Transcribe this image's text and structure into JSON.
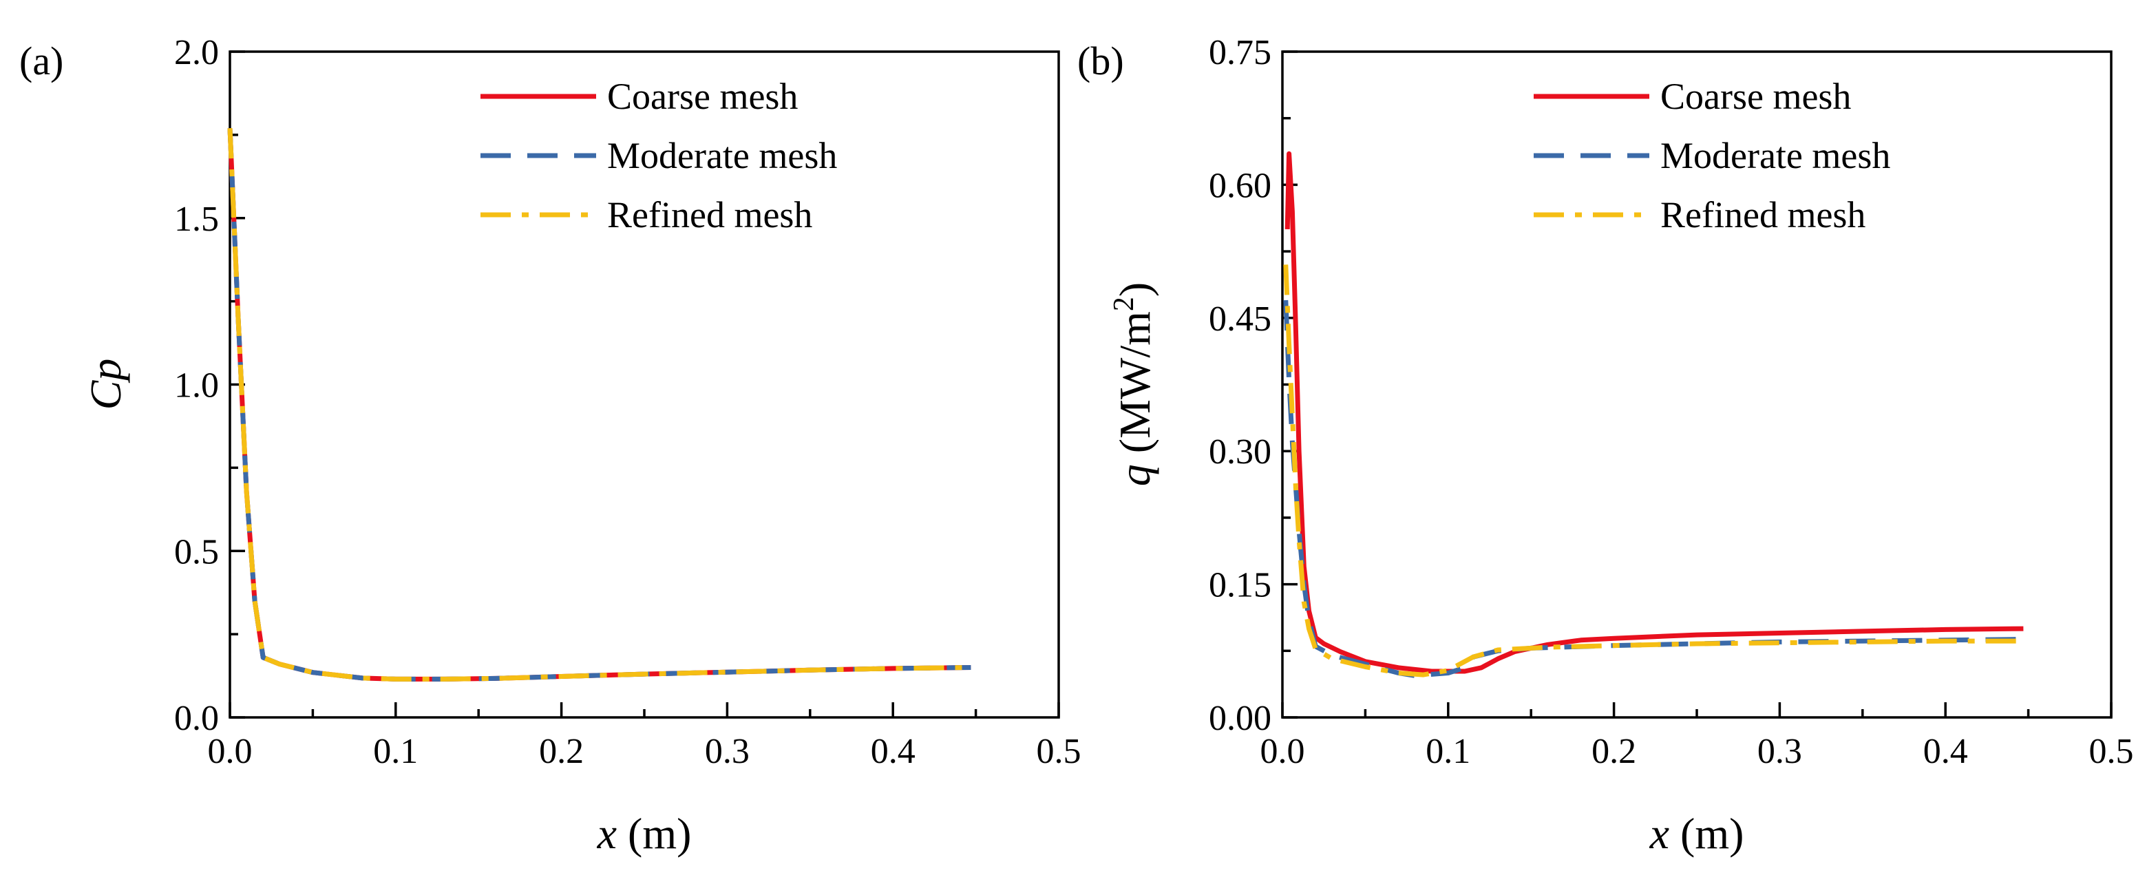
{
  "figure": {
    "panels": [
      "(a)",
      "(b)"
    ]
  },
  "colors": {
    "coarse": "#e8101e",
    "moderate": "#3b6aa8",
    "refined": "#f5be14"
  },
  "chart_data": [
    {
      "type": "line",
      "panel_label": "(a)",
      "xlabel": "x (m)",
      "ylabel": "Cp",
      "xlim": [
        0.0,
        0.5
      ],
      "ylim": [
        0.0,
        2.0
      ],
      "xticks": [
        "0.0",
        "0.1",
        "0.2",
        "0.3",
        "0.4",
        "0.5"
      ],
      "yticks": [
        "0.0",
        "0.5",
        "1.0",
        "1.5",
        "2.0"
      ],
      "grid": false,
      "legend_position": "top-right",
      "series": [
        {
          "name": "Coarse mesh",
          "style": "solid",
          "x": [
            0.0,
            0.005,
            0.01,
            0.015,
            0.02,
            0.03,
            0.05,
            0.08,
            0.1,
            0.13,
            0.16,
            0.2,
            0.25,
            0.3,
            0.35,
            0.4,
            0.447
          ],
          "y": [
            1.77,
            1.2,
            0.68,
            0.35,
            0.18,
            0.16,
            0.135,
            0.118,
            0.115,
            0.115,
            0.117,
            0.123,
            0.13,
            0.136,
            0.142,
            0.147,
            0.15
          ]
        },
        {
          "name": "Moderate mesh",
          "style": "dashed",
          "x": [
            0.0,
            0.005,
            0.01,
            0.015,
            0.02,
            0.03,
            0.05,
            0.08,
            0.1,
            0.13,
            0.16,
            0.2,
            0.25,
            0.3,
            0.35,
            0.4,
            0.447
          ],
          "y": [
            1.77,
            1.2,
            0.68,
            0.35,
            0.18,
            0.16,
            0.135,
            0.118,
            0.115,
            0.115,
            0.117,
            0.123,
            0.13,
            0.136,
            0.142,
            0.147,
            0.15
          ]
        },
        {
          "name": "Refined mesh",
          "style": "dashdot",
          "x": [
            0.0,
            0.005,
            0.01,
            0.015,
            0.02,
            0.03,
            0.05,
            0.08,
            0.1,
            0.13,
            0.16,
            0.2,
            0.25,
            0.3,
            0.35,
            0.4,
            0.447
          ],
          "y": [
            1.77,
            1.2,
            0.68,
            0.35,
            0.18,
            0.16,
            0.135,
            0.118,
            0.115,
            0.115,
            0.117,
            0.123,
            0.13,
            0.136,
            0.142,
            0.147,
            0.15
          ]
        }
      ]
    },
    {
      "type": "line",
      "panel_label": "(b)",
      "xlabel": "x (m)",
      "ylabel": "q (MW/m²)",
      "xlim": [
        0.0,
        0.5
      ],
      "ylim": [
        0.0,
        0.75
      ],
      "xticks": [
        "0.0",
        "0.1",
        "0.2",
        "0.3",
        "0.4",
        "0.5"
      ],
      "yticks": [
        "0.00",
        "0.15",
        "0.30",
        "0.45",
        "0.60",
        "0.75"
      ],
      "grid": false,
      "legend_position": "top-right",
      "series": [
        {
          "name": "Coarse mesh",
          "style": "solid",
          "x": [
            0.003,
            0.004,
            0.006,
            0.008,
            0.01,
            0.013,
            0.016,
            0.02,
            0.025,
            0.035,
            0.05,
            0.07,
            0.09,
            0.11,
            0.12,
            0.13,
            0.14,
            0.16,
            0.18,
            0.2,
            0.25,
            0.3,
            0.35,
            0.4,
            0.447
          ],
          "y": [
            0.55,
            0.635,
            0.57,
            0.44,
            0.3,
            0.17,
            0.12,
            0.09,
            0.083,
            0.074,
            0.063,
            0.056,
            0.052,
            0.052,
            0.056,
            0.066,
            0.074,
            0.082,
            0.087,
            0.089,
            0.093,
            0.095,
            0.097,
            0.099,
            0.1
          ]
        },
        {
          "name": "Moderate mesh",
          "style": "dashed",
          "x": [
            0.002,
            0.004,
            0.006,
            0.008,
            0.01,
            0.013,
            0.016,
            0.02,
            0.03,
            0.05,
            0.07,
            0.08,
            0.1,
            0.11,
            0.115,
            0.13,
            0.15,
            0.2,
            0.25,
            0.3,
            0.35,
            0.4,
            0.447
          ],
          "y": [
            0.47,
            0.38,
            0.31,
            0.26,
            0.21,
            0.15,
            0.11,
            0.08,
            0.07,
            0.06,
            0.05,
            0.047,
            0.05,
            0.056,
            0.068,
            0.075,
            0.078,
            0.081,
            0.083,
            0.085,
            0.086,
            0.087,
            0.088
          ]
        },
        {
          "name": "Refined mesh",
          "style": "dashdot",
          "x": [
            0.002,
            0.004,
            0.006,
            0.008,
            0.01,
            0.013,
            0.016,
            0.02,
            0.03,
            0.05,
            0.07,
            0.085,
            0.1,
            0.115,
            0.13,
            0.16,
            0.2,
            0.25,
            0.3,
            0.35,
            0.4,
            0.447
          ],
          "y": [
            0.51,
            0.42,
            0.34,
            0.26,
            0.2,
            0.13,
            0.1,
            0.077,
            0.066,
            0.057,
            0.05,
            0.048,
            0.053,
            0.068,
            0.076,
            0.079,
            0.081,
            0.083,
            0.084,
            0.085,
            0.086,
            0.086
          ]
        }
      ]
    }
  ]
}
